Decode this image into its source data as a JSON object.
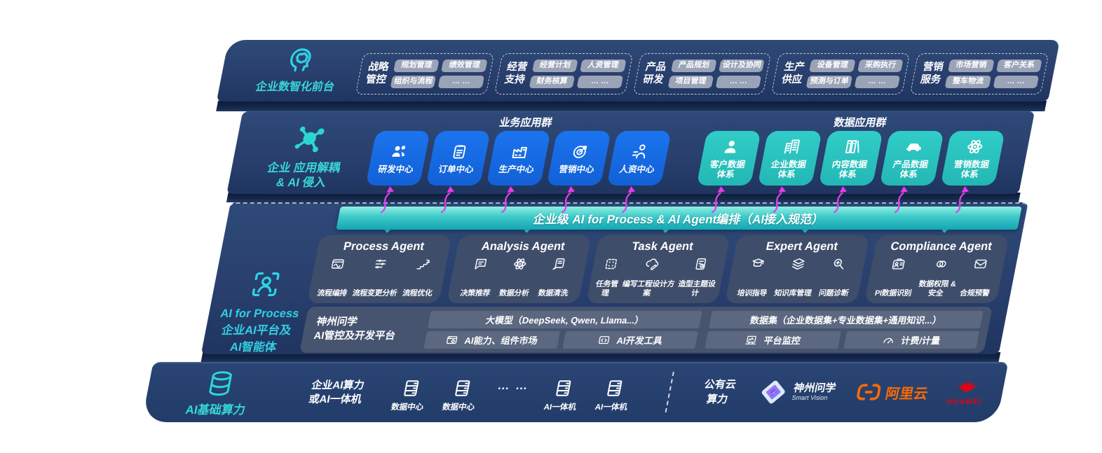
{
  "colors": {
    "navy": "#293f6d",
    "cyan_accent": "#38d8d8",
    "card_blue": "#1569e6",
    "card_teal": "#2cc6c1",
    "banner_teal": "#14a6b4",
    "magenta_arrow": "#e93bec",
    "ali_orange": "#ff6a00",
    "huawei_red": "#e60012"
  },
  "front_office": {
    "label": "企业数智化前台",
    "groups": [
      {
        "name": "战略\n管控",
        "chips": [
          "规划管理",
          "绩效管理",
          "组织与流程",
          "… …"
        ]
      },
      {
        "name": "经营\n支持",
        "chips": [
          "经营计划",
          "人资管理",
          "财务核算",
          "… …"
        ]
      },
      {
        "name": "产品\n研发",
        "chips": [
          "产品规划",
          "设计及协同",
          "项目管理",
          "… …"
        ]
      },
      {
        "name": "生产\n供应",
        "chips": [
          "设备管理",
          "采购执行",
          "预测与订单",
          "… …"
        ]
      },
      {
        "name": "营销\n服务",
        "chips": [
          "市场营销",
          "客户关系",
          "整车物流",
          "… …"
        ]
      }
    ]
  },
  "app_layer": {
    "label": "企业 应用解耦\n& AI 侵入",
    "business": {
      "title": "业务应用群",
      "cards": [
        {
          "label": "研发中心",
          "icon": "people-icon"
        },
        {
          "label": "订单中心",
          "icon": "clipboard-icon"
        },
        {
          "label": "生产中心",
          "icon": "factory-icon"
        },
        {
          "label": "营销中心",
          "icon": "target-icon"
        },
        {
          "label": "人资中心",
          "icon": "hr-icon"
        }
      ]
    },
    "data": {
      "title": "数据应用群",
      "cards": [
        {
          "label": "客户数据\n体系",
          "icon": "person-icon"
        },
        {
          "label": "企业数据\n体系",
          "icon": "buildings-icon"
        },
        {
          "label": "内容数据\n体系",
          "icon": "content-icon"
        },
        {
          "label": "产品数据\n体系",
          "icon": "car-icon"
        },
        {
          "label": "营销数据\n体系",
          "icon": "atom-icon"
        }
      ]
    }
  },
  "banner": {
    "text": "企业级 AI for Process & AI Agent编排（AI接入规范）"
  },
  "ai_layer": {
    "label": "AI for Process\n企业AI平台及\nAI智能体",
    "agents": [
      {
        "title": "Process Agent",
        "items": [
          {
            "label": "流程编排",
            "icon": "flow-icon"
          },
          {
            "label": "流程变更分析",
            "icon": "sliders-icon"
          },
          {
            "label": "流程优化",
            "icon": "steps-icon"
          }
        ]
      },
      {
        "title": "Analysis Agent",
        "items": [
          {
            "label": "决策推荐",
            "icon": "chat-icon"
          },
          {
            "label": "数据分析",
            "icon": "atom-icon"
          },
          {
            "label": "数据清洗",
            "icon": "clean-icon"
          }
        ]
      },
      {
        "title": "Task Agent",
        "items": [
          {
            "label": "任务管理",
            "icon": "grid-icon"
          },
          {
            "label": "编写工程设计方案",
            "icon": "cloud-pen-icon"
          },
          {
            "label": "造型主题设计",
            "icon": "design-icon"
          }
        ]
      },
      {
        "title": "Expert Agent",
        "items": [
          {
            "label": "培训指导",
            "icon": "training-icon"
          },
          {
            "label": "知识库管理",
            "icon": "layers-icon"
          },
          {
            "label": "问题诊断",
            "icon": "diagnose-icon"
          }
        ]
      },
      {
        "title": "Compliance Agent",
        "items": [
          {
            "label": "PI数据识别",
            "icon": "idcard-icon"
          },
          {
            "label": "数据权限 &\n安全",
            "icon": "rings-icon"
          },
          {
            "label": "合规预警",
            "icon": "mail-icon"
          }
        ]
      }
    ]
  },
  "platform": {
    "label": "神州问学\nAI管控及开发平台",
    "model_bar": "大模型（DeepSeek, Qwen, Llama...）",
    "model_cells": [
      {
        "label": "AI能力、组件市场",
        "icon": "window-gear-icon"
      },
      {
        "label": "AI开发工具",
        "icon": "code-icon"
      }
    ],
    "data_bar": "数据集（企业数据集+专业数据集+通用知识...）",
    "data_cells": [
      {
        "label": "平台监控",
        "icon": "monitor-icon"
      },
      {
        "label": "计费/计量",
        "icon": "gauge-icon"
      }
    ]
  },
  "compute": {
    "label": "AI基础算力",
    "onprem": "企业AI算力\n或AI一体机",
    "nodes": [
      {
        "label": "数据中心",
        "icon": "server-icon"
      },
      {
        "label": "数据中心",
        "icon": "server-icon"
      },
      {
        "label": "… …",
        "icon": "dots-icon"
      },
      {
        "label": "AI一体机",
        "icon": "server-icon"
      },
      {
        "label": "AI一体机",
        "icon": "server-icon"
      }
    ],
    "public": "公有云\n算力",
    "vendors": [
      {
        "name": "神州问学",
        "sub": "Smart Vision",
        "icon": "smartvision-logo"
      },
      {
        "name": "阿里云",
        "icon": "alicloud-logo"
      },
      {
        "name": "HUAWEI",
        "icon": "huawei-logo"
      }
    ]
  }
}
